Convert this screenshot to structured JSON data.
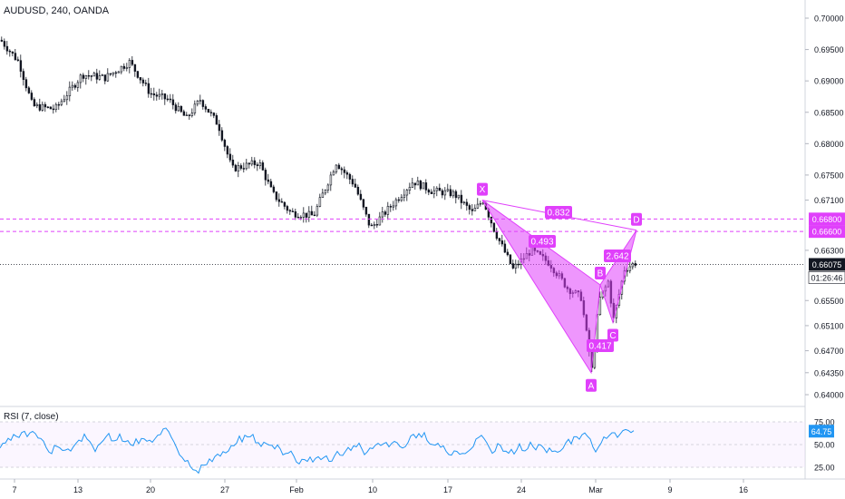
{
  "header": {
    "symbol_line": "AUDUSD, 240, OANDA"
  },
  "rsi": {
    "label": "RSI (7, close)",
    "current": "64.75",
    "levels": [
      "75.00",
      "50.00",
      "25.00"
    ]
  },
  "chart_data": {
    "type": "candlestick",
    "symbol": "AUDUSD",
    "timeframe": "240",
    "source": "OANDA",
    "price_axis": [
      "0.70000",
      "0.69500",
      "0.69000",
      "0.68500",
      "0.68000",
      "0.67500",
      "0.67100",
      "0.66300",
      "0.65500",
      "0.65100",
      "0.64700",
      "0.64350",
      "0.64000"
    ],
    "x_ticks": [
      "7",
      "13",
      "20",
      "27",
      "Feb",
      "10",
      "17",
      "24",
      "Mar",
      "9",
      "16"
    ],
    "last_price": "0.66075",
    "countdown": "01:26:46",
    "level_labels": [
      "0.66800",
      "0.66600"
    ],
    "pattern": {
      "points": [
        {
          "label": "X",
          "price": 0.671
        },
        {
          "label": "A",
          "price": 0.6435
        },
        {
          "label": "B",
          "price": 0.6575
        },
        {
          "label": "C",
          "price": 0.6515
        },
        {
          "label": "D",
          "price": 0.6662
        }
      ],
      "ratios": [
        "0.493",
        "0.417",
        "2.642",
        "0.832"
      ]
    },
    "colors": {
      "pattern": "#e040fb",
      "rsi": "#2196f3",
      "candle": "#131722",
      "last": "#131722"
    }
  }
}
